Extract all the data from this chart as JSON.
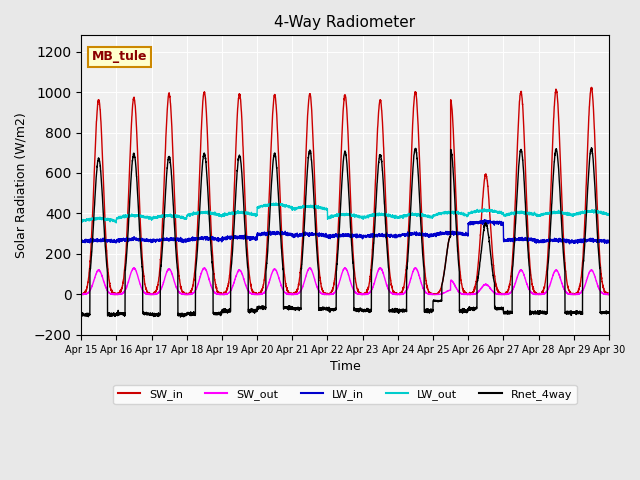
{
  "title": "4-Way Radiometer",
  "xlabel": "Time",
  "ylabel": "Solar Radiation (W/m2)",
  "ylim": [
    -200,
    1280
  ],
  "yticks": [
    -200,
    0,
    200,
    400,
    600,
    800,
    1000,
    1200
  ],
  "label_text": "MB_tule",
  "label_box_color": "#FFFFCC",
  "label_box_edge": "#CC8800",
  "bg_color": "#E8E8E8",
  "plot_bg_color": "#F0F0F0",
  "legend_entries": [
    "SW_in",
    "SW_out",
    "LW_in",
    "LW_out",
    "Rnet_4way"
  ],
  "legend_colors": [
    "#CC0000",
    "#FF00FF",
    "#0000CC",
    "#00CCCC",
    "#000000"
  ],
  "x_tick_labels": [
    "Apr 15",
    "Apr 16",
    "Apr 17",
    "Apr 18",
    "Apr 19",
    "Apr 20",
    "Apr 21",
    "Apr 22",
    "Apr 23",
    "Apr 24",
    "Apr 25",
    "Apr 26",
    "Apr 27",
    "Apr 28",
    "Apr 29",
    "Apr 30"
  ],
  "num_days": 15,
  "sw_in_peaks": [
    960,
    970,
    990,
    1000,
    990,
    985,
    990,
    985,
    960,
    1000,
    960,
    590,
    1000,
    1010,
    1020
  ],
  "sw_out_peaks": [
    120,
    130,
    125,
    130,
    120,
    125,
    130,
    130,
    130,
    130,
    70,
    50,
    120,
    120,
    120
  ],
  "lw_in_base": [
    260,
    265,
    265,
    270,
    275,
    295,
    290,
    285,
    285,
    290,
    295,
    350,
    265,
    260,
    260
  ],
  "lw_out_base": [
    360,
    375,
    375,
    390,
    390,
    430,
    420,
    380,
    380,
    380,
    390,
    400,
    390,
    390,
    395
  ],
  "rnet_peaks": [
    670,
    695,
    680,
    695,
    685,
    695,
    710,
    705,
    690,
    720,
    715,
    350,
    715,
    715,
    720
  ],
  "rnet_night": [
    -100,
    -95,
    -100,
    -95,
    -80,
    -65,
    -70,
    -75,
    -80,
    -80,
    -80,
    -70,
    -90,
    -90,
    -90
  ]
}
